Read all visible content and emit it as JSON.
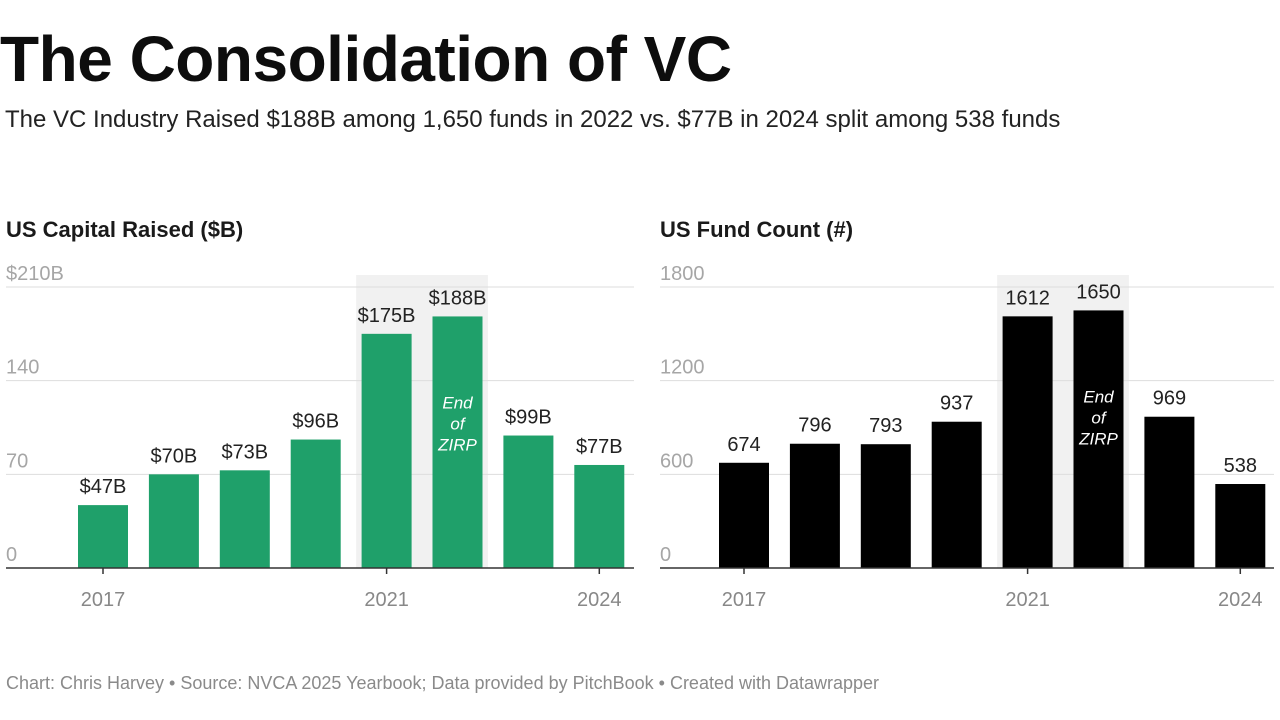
{
  "title": "The Consolidation of VC",
  "subtitle": "The VC Industry Raised $188B among 1,650 funds in 2022 vs. $77B in 2024 split among 538 funds",
  "footer": "Chart: Chris Harvey • Source: NVCA 2025 Yearbook; Data provided by PitchBook • Created with Datawrapper",
  "colors": {
    "capital_bar": "#1fa06a",
    "count_bar": "#000000",
    "highlight_band": "#f1f1f1",
    "grid": "#dddddd",
    "axis_text": "#a6a6a6",
    "tick_text": "#888888"
  },
  "chart_data": [
    {
      "type": "bar",
      "title": "US Capital Raised ($B)",
      "categories": [
        "2017",
        "2018",
        "2019",
        "2020",
        "2021",
        "2022",
        "2023",
        "2024"
      ],
      "values": [
        47,
        70,
        73,
        96,
        175,
        188,
        99,
        77
      ],
      "value_labels": [
        "$47B",
        "$70B",
        "$73B",
        "$96B",
        "$175B",
        "$188B",
        "$99B",
        "$77B"
      ],
      "ylim": [
        0,
        210
      ],
      "yticks": [
        0,
        70,
        140,
        210
      ],
      "ytick_labels": [
        "0",
        "70",
        "140",
        "$210B"
      ],
      "xtick_labels": [
        "2017",
        "2021",
        "2024"
      ],
      "highlight": {
        "from": "2021",
        "to": "2022",
        "label_lines": [
          "End",
          "of",
          "ZIRP"
        ]
      },
      "xlabel": "",
      "ylabel": ""
    },
    {
      "type": "bar",
      "title": "US Fund Count (#)",
      "categories": [
        "2017",
        "2018",
        "2019",
        "2020",
        "2021",
        "2022",
        "2023",
        "2024"
      ],
      "values": [
        674,
        796,
        793,
        937,
        1612,
        1650,
        969,
        538
      ],
      "value_labels": [
        "674",
        "796",
        "793",
        "937",
        "1612",
        "1650",
        "969",
        "538"
      ],
      "ylim": [
        0,
        1800
      ],
      "yticks": [
        0,
        600,
        1200,
        1800
      ],
      "ytick_labels": [
        "0",
        "600",
        "1200",
        "1800"
      ],
      "xtick_labels": [
        "2017",
        "2021",
        "2024"
      ],
      "highlight": {
        "from": "2021",
        "to": "2022",
        "label_lines": [
          "End",
          "of",
          "ZIRP"
        ]
      },
      "xlabel": "",
      "ylabel": ""
    }
  ]
}
